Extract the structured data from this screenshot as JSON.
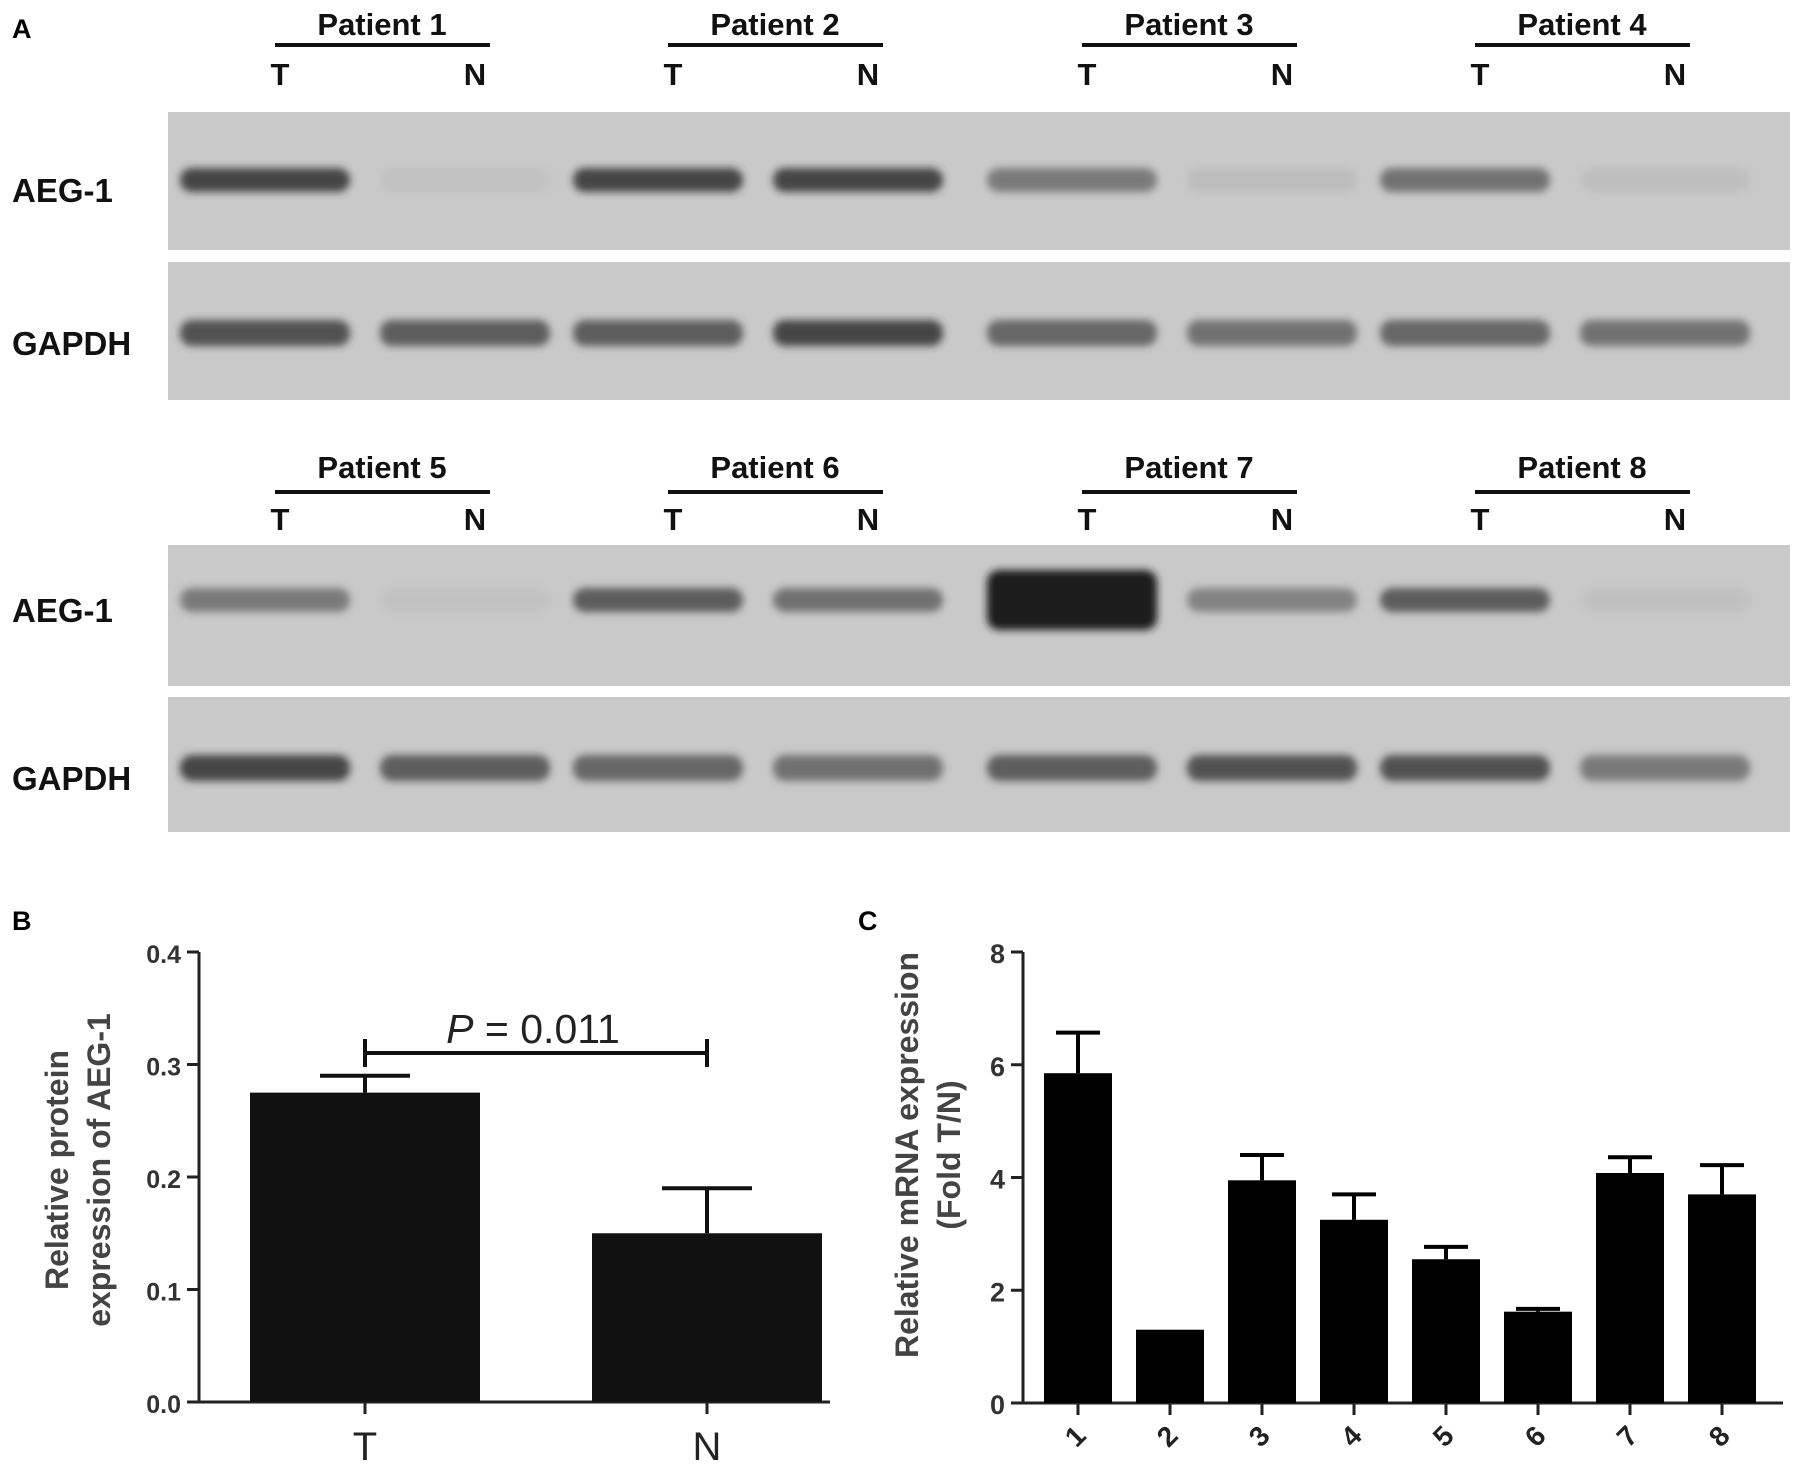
{
  "panel_a": {
    "letter": "A",
    "blocks": [
      {
        "patients": [
          {
            "label": "Patient 1",
            "lanes": [
              "T",
              "N"
            ],
            "aeg1_intensity": [
              0.85,
              0.03
            ],
            "gapdh_intensity": [
              0.8,
              0.75
            ]
          },
          {
            "label": "Patient 2",
            "lanes": [
              "T",
              "N"
            ],
            "aeg1_intensity": [
              0.85,
              0.85
            ],
            "gapdh_intensity": [
              0.75,
              0.85
            ]
          },
          {
            "label": "Patient 3",
            "lanes": [
              "T",
              "N"
            ],
            "aeg1_intensity": [
              0.6,
              0.1
            ],
            "gapdh_intensity": [
              0.7,
              0.65
            ]
          },
          {
            "label": "Patient 4",
            "lanes": [
              "T",
              "N"
            ],
            "aeg1_intensity": [
              0.65,
              0.08
            ],
            "gapdh_intensity": [
              0.7,
              0.65
            ]
          }
        ],
        "rows": [
          "AEG-1",
          "GAPDH"
        ]
      },
      {
        "patients": [
          {
            "label": "Patient 5",
            "lanes": [
              "T",
              "N"
            ],
            "aeg1_intensity": [
              0.6,
              0.02
            ],
            "gapdh_intensity": [
              0.85,
              0.75
            ]
          },
          {
            "label": "Patient 6",
            "lanes": [
              "T",
              "N"
            ],
            "aeg1_intensity": [
              0.75,
              0.65
            ],
            "gapdh_intensity": [
              0.7,
              0.65
            ]
          },
          {
            "label": "Patient 7",
            "lanes": [
              "T",
              "N"
            ],
            "aeg1_intensity": [
              1.0,
              0.55
            ],
            "gapdh_intensity": [
              0.75,
              0.8
            ]
          },
          {
            "label": "Patient 8",
            "lanes": [
              "T",
              "N"
            ],
            "aeg1_intensity": [
              0.75,
              0.05
            ],
            "gapdh_intensity": [
              0.8,
              0.6
            ]
          }
        ],
        "rows": [
          "AEG-1",
          "GAPDH"
        ]
      }
    ]
  },
  "chart_data": [
    {
      "panel": "B",
      "type": "bar",
      "categories": [
        "T",
        "N"
      ],
      "values": [
        0.275,
        0.15
      ],
      "errors": [
        0.015,
        0.04
      ],
      "ylabel_lines": [
        "Relative protein",
        "expression of  AEG-1"
      ],
      "xlabel": "",
      "ylim": [
        0,
        0.4
      ],
      "yticks": [
        "0.0",
        "0.1",
        "0.2",
        "0.3",
        "0.4"
      ],
      "annotation": {
        "italic": "P",
        "text": " = 0.011"
      },
      "color": "#111111"
    },
    {
      "panel": "C",
      "type": "bar",
      "categories": [
        "1",
        "2",
        "3",
        "4",
        "5",
        "6",
        "7",
        "8"
      ],
      "values": [
        5.85,
        1.3,
        3.95,
        3.25,
        2.55,
        1.62,
        4.08,
        3.7
      ],
      "errors": [
        0.72,
        0.0,
        0.45,
        0.45,
        0.22,
        0.05,
        0.28,
        0.52
      ],
      "ylabel_lines": [
        "Relative mRNA expression",
        "(Fold T/N)"
      ],
      "xlabel": "",
      "ylim": [
        0,
        8
      ],
      "yticks": [
        "0",
        "2",
        "4",
        "6",
        "8"
      ],
      "color": "#000000"
    }
  ]
}
